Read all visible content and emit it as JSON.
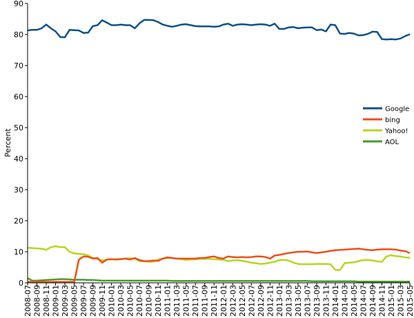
{
  "chart_data": {
    "type": "line",
    "y_label": "Percent",
    "categories": [
      "2008-07",
      null,
      "2008-09",
      null,
      "2008-11",
      null,
      "2009-01",
      null,
      "2009-03",
      null,
      "2009-05",
      null,
      "2009-07",
      null,
      "2009-09",
      null,
      "2009-11",
      null,
      "2010-01",
      null,
      "2010-03",
      null,
      "2010-05",
      null,
      "2010-07",
      null,
      "2010-09",
      null,
      "2010-11",
      null,
      "2011-01",
      null,
      "2011-03",
      null,
      "2011-05",
      null,
      "2011-07",
      null,
      "2011-09",
      null,
      "2011-11",
      null,
      "2012-01",
      null,
      "2012-03",
      null,
      "2012-05",
      null,
      "2012-07",
      null,
      "2012-09",
      null,
      "2012-11",
      null,
      "2013-01",
      null,
      "2013-03",
      null,
      "2013-05",
      null,
      "2013-07",
      null,
      "2013-09",
      null,
      "2013-11",
      null,
      "2014-01",
      null,
      "2014-03",
      null,
      "2014-05",
      null,
      "2014-07",
      null,
      "2014-09",
      null,
      "2014-11",
      null,
      "2015-01",
      null,
      "2015-03",
      null,
      "2015-05"
    ],
    "series": [
      {
        "name": "Google",
        "color": "#0b4f8c",
        "values": [
          81.3,
          81.5,
          81.5,
          82,
          83.2,
          82,
          81,
          79.2,
          79.1,
          81.5,
          81.4,
          81.3,
          80.5,
          80.6,
          82.7,
          83,
          84.6,
          83.8,
          83,
          83,
          83.2,
          83,
          83,
          82,
          83.6,
          84.7,
          84.7,
          84.6,
          84,
          83.2,
          82.8,
          82.5,
          82.8,
          83.2,
          83.3,
          83,
          82.7,
          82.6,
          82.6,
          82.6,
          82.5,
          82.6,
          83.2,
          83.5,
          82.8,
          83.2,
          83.3,
          83.2,
          83,
          83.2,
          83.3,
          83.2,
          82.8,
          83.5,
          81.8,
          81.8,
          82.3,
          82.4,
          82,
          82.2,
          82.3,
          82.3,
          81.4,
          81.6,
          81,
          83.2,
          83,
          80.3,
          80.2,
          80.5,
          80.3,
          79.7,
          79.8,
          80.2,
          80.9,
          80.8,
          78.5,
          78.4,
          78.5,
          78.4,
          78.7,
          79.5,
          80.1
        ]
      },
      {
        "name": "bing",
        "color": "#f04e1a",
        "values": [
          0.3,
          0.3,
          0.3,
          0.3,
          0.3,
          0.3,
          0.3,
          0.3,
          0.3,
          0.3,
          0.3,
          7.5,
          8.5,
          8.4,
          7.8,
          8,
          6.5,
          7.5,
          7.6,
          7.5,
          7.6,
          7.8,
          7.5,
          8,
          7.3,
          7,
          7,
          7.2,
          7.1,
          7.8,
          8.2,
          8,
          7.8,
          7.8,
          7.8,
          7.8,
          7.8,
          8,
          8,
          8.3,
          8.5,
          8,
          7.8,
          8.5,
          8.3,
          8.2,
          8.3,
          8.2,
          8.3,
          8.5,
          8.5,
          8.3,
          7.8,
          8.8,
          9,
          9.3,
          9.6,
          9.8,
          10,
          10,
          10.1,
          9.8,
          9.6,
          9.8,
          10,
          10.3,
          10.5,
          10.6,
          10.7,
          10.8,
          10.9,
          11,
          10.8,
          10.6,
          10.5,
          10.7,
          10.8,
          10.8,
          10.8,
          10.7,
          10.4,
          10.2,
          9.6
        ]
      },
      {
        "name": "Yahoo!",
        "color": "#b5d61f",
        "values": [
          11.3,
          11.2,
          11.1,
          11,
          10.6,
          11.5,
          11.8,
          11.5,
          11.5,
          10,
          9.5,
          9.3,
          9.2,
          8.8,
          8,
          7.6,
          7.2,
          7.5,
          7.5,
          7.6,
          7.7,
          7.8,
          7.9,
          7.8,
          7,
          6.9,
          6.8,
          6.8,
          7.5,
          7.8,
          8,
          8,
          7.8,
          7.6,
          7.4,
          7.5,
          7.6,
          7.7,
          7.7,
          7.7,
          7.6,
          7.5,
          7.4,
          7,
          7.2,
          7.3,
          7.1,
          6.8,
          6.5,
          6.3,
          6.1,
          6.2,
          6.5,
          6.8,
          7.3,
          7.4,
          7.2,
          6.5,
          6.1,
          6,
          6,
          6,
          6.1,
          6.1,
          6.1,
          6,
          4.2,
          4.1,
          6.3,
          6.5,
          6.6,
          7,
          7.3,
          7.4,
          7.2,
          6.9,
          6.8,
          8.5,
          8.9,
          8.6,
          8.5,
          8.2,
          8.1
        ]
      },
      {
        "name": "AOL",
        "color": "#4a9a2a",
        "values": [
          1.5,
          0.7,
          0.7,
          0.8,
          0.9,
          1,
          1.1,
          1.2,
          1.2,
          1.1,
          1,
          1,
          1,
          0.9,
          0.9,
          0.8,
          0.7,
          0.7,
          0.7,
          0.7,
          0.7,
          0.7,
          0.7,
          0.7,
          0.7,
          0.7,
          0.7,
          0.7,
          0.7,
          0.7,
          0.7,
          0.6,
          0.6,
          0.6,
          0.6,
          0.6,
          0.6,
          0.6,
          0.6,
          0.6,
          0.6,
          0.6,
          0.6,
          0.6,
          0.6,
          0.6,
          0.6,
          0.6,
          0.6,
          0.6,
          0.6,
          0.6,
          0.6,
          0.6,
          0.6,
          0.6,
          0.6,
          0.6,
          0.6,
          0.6,
          0.6,
          0.5,
          0.5,
          0.5,
          0.5,
          0.5,
          0.5,
          0.5,
          0.5,
          0.5,
          0.5,
          0.4,
          0.4,
          0.4,
          0.4,
          0.4,
          0.4,
          0.4,
          0.4,
          0.4,
          0.4,
          0.4,
          0.4
        ]
      }
    ],
    "ylim": [
      0,
      90
    ],
    "yticks": [
      0,
      10,
      20,
      30,
      40,
      50,
      60,
      70,
      80,
      90
    ],
    "legend": "right"
  }
}
